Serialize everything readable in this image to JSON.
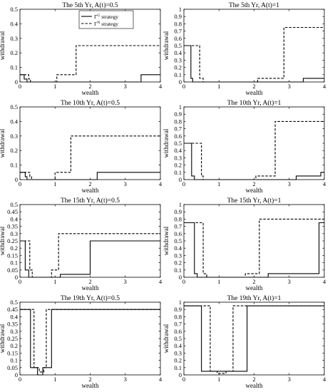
{
  "figure": {
    "legend": {
      "solid_label_main": "Γ",
      "solid_label_sup": "G",
      "solid_label_rest": " strategy",
      "dashed_label_main": "Γ",
      "dashed_label_sup": "N",
      "dashed_label_rest": " strategy"
    }
  },
  "chart_data": [
    {
      "type": "line",
      "title": "The 5th Yr, A(t)=0.5",
      "xlabel": "wealth",
      "ylabel": "withdrawal",
      "xlim": [
        0,
        4
      ],
      "ylim": [
        0,
        0.5
      ],
      "x_ticks": [
        "0",
        "1",
        "2",
        "3",
        "4"
      ],
      "y_ticks": [
        "0",
        "0.1",
        "0.2",
        "0.3",
        "0.4",
        "0.5"
      ],
      "legend_position": "top-center",
      "grid": false,
      "series": [
        {
          "style": "solid",
          "x": [
            0,
            0.12,
            0.12,
            0.2,
            0.2,
            3.45,
            3.45,
            4
          ],
          "y": [
            0.05,
            0.05,
            0.02,
            0.02,
            0,
            0,
            0.05,
            0.05
          ]
        },
        {
          "style": "dashed",
          "x": [
            0,
            0.25,
            0.25,
            0.3,
            0.3,
            1.05,
            1.05,
            1.6,
            1.6,
            4
          ],
          "y": [
            0.05,
            0.05,
            0.02,
            0.02,
            0,
            0,
            0.05,
            0.05,
            0.25,
            0.25
          ]
        }
      ]
    },
    {
      "type": "line",
      "title": "The 5th Yr, A(t)=1",
      "xlabel": "wealth",
      "ylabel": "withdrawal",
      "xlim": [
        0,
        4
      ],
      "ylim": [
        0,
        1
      ],
      "x_ticks": [
        "0",
        "1",
        "2",
        "3",
        "4"
      ],
      "y_ticks": [
        "0",
        "0.1",
        "0.2",
        "0.3",
        "0.4",
        "0.5",
        "0.6",
        "0.7",
        "0.8",
        "0.9",
        "1"
      ],
      "grid": false,
      "series": [
        {
          "style": "solid",
          "x": [
            0,
            0.2,
            0.2,
            0.25,
            0.25,
            3.4,
            3.4,
            4
          ],
          "y": [
            0.5,
            0.5,
            0.05,
            0.05,
            0,
            0,
            0.05,
            0.05
          ]
        },
        {
          "style": "dashed",
          "x": [
            0,
            0.45,
            0.45,
            0.55,
            0.55,
            2.1,
            2.1,
            2.85,
            2.85,
            4
          ],
          "y": [
            0.5,
            0.5,
            0.05,
            0.05,
            0,
            0,
            0.05,
            0.05,
            0.75,
            0.75
          ]
        }
      ]
    },
    {
      "type": "line",
      "title": "The 10th Yr, A(t)=0.5",
      "xlabel": "wealth",
      "ylabel": "withdrawal",
      "xlim": [
        0,
        4
      ],
      "ylim": [
        0,
        0.5
      ],
      "x_ticks": [
        "0",
        "1",
        "2",
        "3",
        "4"
      ],
      "y_ticks": [
        "0",
        "0.1",
        "0.2",
        "0.3",
        "0.4",
        "0.5"
      ],
      "grid": false,
      "series": [
        {
          "style": "solid",
          "x": [
            0,
            0.15,
            0.15,
            0.2,
            0.2,
            2.2,
            2.2,
            4
          ],
          "y": [
            0.05,
            0.05,
            0.02,
            0.02,
            0,
            0,
            0.05,
            0.05
          ]
        },
        {
          "style": "dashed",
          "x": [
            0,
            0.28,
            0.28,
            0.33,
            0.33,
            1.0,
            1.0,
            1.45,
            1.45,
            4
          ],
          "y": [
            0.05,
            0.05,
            0.02,
            0.02,
            0,
            0,
            0.05,
            0.05,
            0.3,
            0.3
          ]
        }
      ]
    },
    {
      "type": "line",
      "title": "The 10th Yr, A(t)=1",
      "xlabel": "wealth",
      "ylabel": "withdrawal",
      "xlim": [
        0,
        4
      ],
      "ylim": [
        0,
        1
      ],
      "x_ticks": [
        "0",
        "1",
        "2",
        "3",
        "4"
      ],
      "y_ticks": [
        "0",
        "0.1",
        "0.2",
        "0.3",
        "0.4",
        "0.5",
        "0.6",
        "0.7",
        "0.8",
        "0.9",
        "1"
      ],
      "grid": false,
      "series": [
        {
          "style": "solid",
          "x": [
            0,
            0.22,
            0.22,
            0.3,
            0.3,
            3.2,
            3.2,
            3.9,
            3.9,
            4
          ],
          "y": [
            0.5,
            0.5,
            0.05,
            0.05,
            0,
            0,
            0.05,
            0.05,
            0.1,
            0.1
          ]
        },
        {
          "style": "dashed",
          "x": [
            0,
            0.5,
            0.5,
            0.55,
            0.55,
            2.05,
            2.05,
            2.6,
            2.6,
            4
          ],
          "y": [
            0.5,
            0.5,
            0.05,
            0.05,
            0,
            0,
            0.05,
            0.05,
            0.8,
            0.8
          ]
        }
      ]
    },
    {
      "type": "line",
      "title": "The 15th Yr, A(t)=0.5",
      "xlabel": "wealth",
      "ylabel": "withdrawal",
      "xlim": [
        0,
        4
      ],
      "ylim": [
        0,
        0.5
      ],
      "x_ticks": [
        "0",
        "1",
        "2",
        "3",
        "4"
      ],
      "y_ticks": [
        "0",
        "0.05",
        "0.1",
        "0.15",
        "0.2",
        "0.25",
        "0.3",
        "0.35",
        "0.4",
        "0.45",
        "0.5"
      ],
      "grid": false,
      "series": [
        {
          "style": "solid",
          "x": [
            0,
            0.15,
            0.15,
            0.25,
            0.25,
            1.15,
            1.15,
            2.0,
            2.0,
            4
          ],
          "y": [
            0.25,
            0.25,
            0.05,
            0.05,
            0,
            0,
            0.02,
            0.02,
            0.25,
            0.25
          ]
        },
        {
          "style": "dashed",
          "x": [
            0,
            0.28,
            0.28,
            0.35,
            0.35,
            0.9,
            0.9,
            1.1,
            1.1,
            4
          ],
          "y": [
            0.25,
            0.25,
            0.05,
            0.05,
            0,
            0,
            0.05,
            0.05,
            0.3,
            0.3
          ]
        }
      ]
    },
    {
      "type": "line",
      "title": "The 15th Yr, A(t)=1",
      "xlabel": "wealth",
      "ylabel": "withdrawal",
      "xlim": [
        0,
        4
      ],
      "ylim": [
        0,
        1
      ],
      "x_ticks": [
        "0",
        "1",
        "2",
        "3",
        "4"
      ],
      "y_ticks": [
        "0",
        "0.1",
        "0.2",
        "0.3",
        "0.4",
        "0.5",
        "0.6",
        "0.7",
        "0.8",
        "0.9",
        "1"
      ],
      "grid": false,
      "series": [
        {
          "style": "solid",
          "x": [
            0,
            0.3,
            0.3,
            0.38,
            0.38,
            2.4,
            2.4,
            3.85,
            3.85,
            4
          ],
          "y": [
            0.75,
            0.75,
            0.05,
            0.05,
            0,
            0,
            0.05,
            0.05,
            0.75,
            0.75
          ]
        },
        {
          "style": "dashed",
          "x": [
            0,
            0.55,
            0.55,
            0.65,
            0.65,
            1.75,
            1.75,
            2.15,
            2.15,
            4
          ],
          "y": [
            0.75,
            0.75,
            0.05,
            0.05,
            0,
            0,
            0.05,
            0.05,
            0.8,
            0.8
          ]
        }
      ]
    },
    {
      "type": "line",
      "title": "The 19th Yr, A(t)=0.5",
      "xlabel": "wealth",
      "ylabel": "withdrawal",
      "xlim": [
        0,
        4
      ],
      "ylim": [
        0,
        0.5
      ],
      "x_ticks": [
        "0",
        "1",
        "2",
        "3",
        "4"
      ],
      "y_ticks": [
        "0",
        "0.05",
        "0.1",
        "0.15",
        "0.2",
        "0.25",
        "0.3",
        "0.35",
        "0.4",
        "0.45",
        "0.5"
      ],
      "grid": false,
      "series": [
        {
          "style": "solid",
          "x": [
            0,
            0.3,
            0.3,
            0.5,
            0.5,
            0.65,
            0.65,
            0.9,
            0.9,
            4
          ],
          "y": [
            0.45,
            0.45,
            0.05,
            0.05,
            0,
            0,
            0.05,
            0.05,
            0.45,
            0.45
          ]
        },
        {
          "style": "dashed",
          "x": [
            0,
            0.4,
            0.4,
            0.55,
            0.55,
            0.68,
            0.68,
            0.75,
            0.75,
            4
          ],
          "y": [
            0.45,
            0.45,
            0.05,
            0.05,
            0.02,
            0.02,
            0.05,
            0.05,
            0.45,
            0.45
          ]
        }
      ]
    },
    {
      "type": "line",
      "title": "The 19th Yr, A(t)=1",
      "xlabel": "wealth",
      "ylabel": "withdrawal",
      "xlim": [
        0,
        4
      ],
      "ylim": [
        0,
        1
      ],
      "x_ticks": [
        "0",
        "1",
        "2",
        "3",
        "4"
      ],
      "y_ticks": [
        "0",
        "0.1",
        "0.2",
        "0.3",
        "0.4",
        "0.5",
        "0.6",
        "0.7",
        "0.8",
        "0.9",
        "1"
      ],
      "grid": false,
      "series": [
        {
          "style": "solid",
          "x": [
            0,
            0.5,
            0.5,
            1.8,
            1.8,
            4
          ],
          "y": [
            0.95,
            0.95,
            0.05,
            0.05,
            0.95,
            0.95
          ]
        },
        {
          "style": "dashed",
          "x": [
            0,
            0.75,
            0.75,
            0.95,
            0.95,
            1.2,
            1.2,
            1.4,
            1.4,
            4
          ],
          "y": [
            0.95,
            0.95,
            0.05,
            0.05,
            0.02,
            0.02,
            0.05,
            0.05,
            0.95,
            0.95
          ]
        }
      ]
    }
  ]
}
